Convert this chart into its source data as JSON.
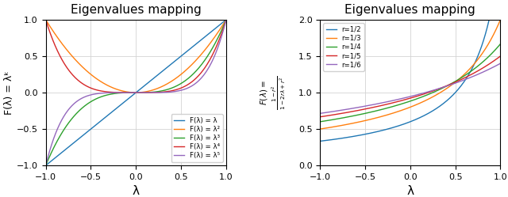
{
  "title": "Eigenvalues mapping",
  "left": {
    "xlabel": "λ",
    "ylabel": "F(λ) = λᵏ",
    "xlim": [
      -1.0,
      1.0
    ],
    "ylim": [
      -1.0,
      1.0
    ],
    "yticks": [
      -1.0,
      -0.5,
      0.0,
      0.5,
      1.0
    ],
    "xticks": [
      -1.0,
      -0.5,
      0.0,
      0.5,
      1.0
    ],
    "curves": [
      {
        "k": 1,
        "color": "#1f77b4",
        "label": "F(λ) = λ"
      },
      {
        "k": 2,
        "color": "#ff7f0e",
        "label": "F(λ) = λ²"
      },
      {
        "k": 3,
        "color": "#2ca02c",
        "label": "F(λ) = λ³"
      },
      {
        "k": 4,
        "color": "#d62728",
        "label": "F(λ) = λ⁴"
      },
      {
        "k": 5,
        "color": "#9467bd",
        "label": "F(λ) = λ⁵"
      }
    ]
  },
  "right": {
    "xlabel": "λ",
    "xlim": [
      -1.0,
      1.0
    ],
    "ylim": [
      0.0,
      2.0
    ],
    "yticks": [
      0.0,
      0.5,
      1.0,
      1.5,
      2.0
    ],
    "xticks": [
      -1.0,
      -0.5,
      0.0,
      0.5,
      1.0
    ],
    "curves": [
      {
        "r": 0.5,
        "color": "#1f77b4",
        "label": "r=1/2"
      },
      {
        "r": 0.3333333333333333,
        "color": "#ff7f0e",
        "label": "r=1/3"
      },
      {
        "r": 0.25,
        "color": "#2ca02c",
        "label": "r=1/4"
      },
      {
        "r": 0.2,
        "color": "#d62728",
        "label": "r=1/5"
      },
      {
        "r": 0.16666666666666666,
        "color": "#9467bd",
        "label": "r=1/6"
      }
    ]
  }
}
